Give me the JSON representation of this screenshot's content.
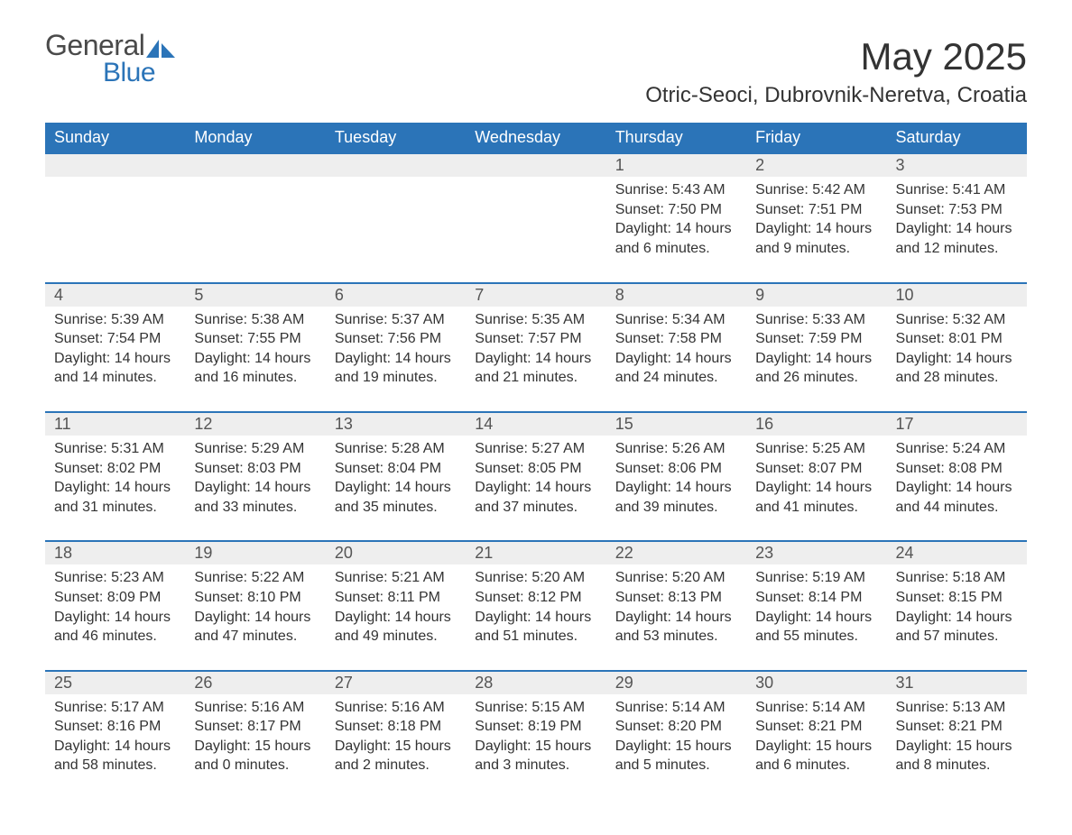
{
  "brand": {
    "general": "General",
    "blue": "Blue",
    "icon_color": "#2b74b8",
    "text_gray": "#4a4a4a"
  },
  "title": "May 2025",
  "location": "Otric-Seoci, Dubrovnik-Neretva, Croatia",
  "colors": {
    "header_bg": "#2b74b8",
    "header_text": "#ffffff",
    "daynum_bg": "#eeeeee",
    "daynum_text": "#555555",
    "body_text": "#333333",
    "row_border": "#2b74b8",
    "page_bg": "#ffffff"
  },
  "typography": {
    "title_fontsize": 42,
    "location_fontsize": 24,
    "header_fontsize": 18,
    "daynum_fontsize": 18,
    "cell_fontsize": 16,
    "font_family": "Segoe UI"
  },
  "calendar": {
    "type": "table",
    "columns": [
      "Sunday",
      "Monday",
      "Tuesday",
      "Wednesday",
      "Thursday",
      "Friday",
      "Saturday"
    ],
    "weeks": [
      [
        null,
        null,
        null,
        null,
        {
          "num": "1",
          "sunrise": "Sunrise: 5:43 AM",
          "sunset": "Sunset: 7:50 PM",
          "daylight": "Daylight: 14 hours and 6 minutes."
        },
        {
          "num": "2",
          "sunrise": "Sunrise: 5:42 AM",
          "sunset": "Sunset: 7:51 PM",
          "daylight": "Daylight: 14 hours and 9 minutes."
        },
        {
          "num": "3",
          "sunrise": "Sunrise: 5:41 AM",
          "sunset": "Sunset: 7:53 PM",
          "daylight": "Daylight: 14 hours and 12 minutes."
        }
      ],
      [
        {
          "num": "4",
          "sunrise": "Sunrise: 5:39 AM",
          "sunset": "Sunset: 7:54 PM",
          "daylight": "Daylight: 14 hours and 14 minutes."
        },
        {
          "num": "5",
          "sunrise": "Sunrise: 5:38 AM",
          "sunset": "Sunset: 7:55 PM",
          "daylight": "Daylight: 14 hours and 16 minutes."
        },
        {
          "num": "6",
          "sunrise": "Sunrise: 5:37 AM",
          "sunset": "Sunset: 7:56 PM",
          "daylight": "Daylight: 14 hours and 19 minutes."
        },
        {
          "num": "7",
          "sunrise": "Sunrise: 5:35 AM",
          "sunset": "Sunset: 7:57 PM",
          "daylight": "Daylight: 14 hours and 21 minutes."
        },
        {
          "num": "8",
          "sunrise": "Sunrise: 5:34 AM",
          "sunset": "Sunset: 7:58 PM",
          "daylight": "Daylight: 14 hours and 24 minutes."
        },
        {
          "num": "9",
          "sunrise": "Sunrise: 5:33 AM",
          "sunset": "Sunset: 7:59 PM",
          "daylight": "Daylight: 14 hours and 26 minutes."
        },
        {
          "num": "10",
          "sunrise": "Sunrise: 5:32 AM",
          "sunset": "Sunset: 8:01 PM",
          "daylight": "Daylight: 14 hours and 28 minutes."
        }
      ],
      [
        {
          "num": "11",
          "sunrise": "Sunrise: 5:31 AM",
          "sunset": "Sunset: 8:02 PM",
          "daylight": "Daylight: 14 hours and 31 minutes."
        },
        {
          "num": "12",
          "sunrise": "Sunrise: 5:29 AM",
          "sunset": "Sunset: 8:03 PM",
          "daylight": "Daylight: 14 hours and 33 minutes."
        },
        {
          "num": "13",
          "sunrise": "Sunrise: 5:28 AM",
          "sunset": "Sunset: 8:04 PM",
          "daylight": "Daylight: 14 hours and 35 minutes."
        },
        {
          "num": "14",
          "sunrise": "Sunrise: 5:27 AM",
          "sunset": "Sunset: 8:05 PM",
          "daylight": "Daylight: 14 hours and 37 minutes."
        },
        {
          "num": "15",
          "sunrise": "Sunrise: 5:26 AM",
          "sunset": "Sunset: 8:06 PM",
          "daylight": "Daylight: 14 hours and 39 minutes."
        },
        {
          "num": "16",
          "sunrise": "Sunrise: 5:25 AM",
          "sunset": "Sunset: 8:07 PM",
          "daylight": "Daylight: 14 hours and 41 minutes."
        },
        {
          "num": "17",
          "sunrise": "Sunrise: 5:24 AM",
          "sunset": "Sunset: 8:08 PM",
          "daylight": "Daylight: 14 hours and 44 minutes."
        }
      ],
      [
        {
          "num": "18",
          "sunrise": "Sunrise: 5:23 AM",
          "sunset": "Sunset: 8:09 PM",
          "daylight": "Daylight: 14 hours and 46 minutes."
        },
        {
          "num": "19",
          "sunrise": "Sunrise: 5:22 AM",
          "sunset": "Sunset: 8:10 PM",
          "daylight": "Daylight: 14 hours and 47 minutes."
        },
        {
          "num": "20",
          "sunrise": "Sunrise: 5:21 AM",
          "sunset": "Sunset: 8:11 PM",
          "daylight": "Daylight: 14 hours and 49 minutes."
        },
        {
          "num": "21",
          "sunrise": "Sunrise: 5:20 AM",
          "sunset": "Sunset: 8:12 PM",
          "daylight": "Daylight: 14 hours and 51 minutes."
        },
        {
          "num": "22",
          "sunrise": "Sunrise: 5:20 AM",
          "sunset": "Sunset: 8:13 PM",
          "daylight": "Daylight: 14 hours and 53 minutes."
        },
        {
          "num": "23",
          "sunrise": "Sunrise: 5:19 AM",
          "sunset": "Sunset: 8:14 PM",
          "daylight": "Daylight: 14 hours and 55 minutes."
        },
        {
          "num": "24",
          "sunrise": "Sunrise: 5:18 AM",
          "sunset": "Sunset: 8:15 PM",
          "daylight": "Daylight: 14 hours and 57 minutes."
        }
      ],
      [
        {
          "num": "25",
          "sunrise": "Sunrise: 5:17 AM",
          "sunset": "Sunset: 8:16 PM",
          "daylight": "Daylight: 14 hours and 58 minutes."
        },
        {
          "num": "26",
          "sunrise": "Sunrise: 5:16 AM",
          "sunset": "Sunset: 8:17 PM",
          "daylight": "Daylight: 15 hours and 0 minutes."
        },
        {
          "num": "27",
          "sunrise": "Sunrise: 5:16 AM",
          "sunset": "Sunset: 8:18 PM",
          "daylight": "Daylight: 15 hours and 2 minutes."
        },
        {
          "num": "28",
          "sunrise": "Sunrise: 5:15 AM",
          "sunset": "Sunset: 8:19 PM",
          "daylight": "Daylight: 15 hours and 3 minutes."
        },
        {
          "num": "29",
          "sunrise": "Sunrise: 5:14 AM",
          "sunset": "Sunset: 8:20 PM",
          "daylight": "Daylight: 15 hours and 5 minutes."
        },
        {
          "num": "30",
          "sunrise": "Sunrise: 5:14 AM",
          "sunset": "Sunset: 8:21 PM",
          "daylight": "Daylight: 15 hours and 6 minutes."
        },
        {
          "num": "31",
          "sunrise": "Sunrise: 5:13 AM",
          "sunset": "Sunset: 8:21 PM",
          "daylight": "Daylight: 15 hours and 8 minutes."
        }
      ]
    ]
  }
}
